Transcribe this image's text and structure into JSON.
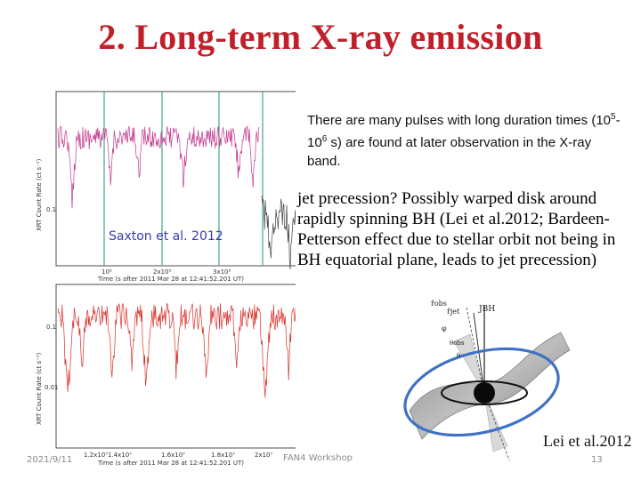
{
  "slide": {
    "title": "2. Long-term X-ray emission",
    "text1_a": "There are many pulses with long duration times (10",
    "text1_sup1": "5",
    "text1_b": "-10",
    "text1_sup2": "6",
    "text1_c": " s) are found at later observation in the X-ray band.",
    "text2": "jet precession?  Possibly warped disk around rapidly spinning BH (Lei et al.2012; Bardeen-Petterson effect due to stellar orbit not being in BH equatorial plane, leads to jet precession)",
    "credit_top": "Saxton et al. 2012",
    "credit_bottom": "Lei et al.2012",
    "footer_date": "2021/9/11",
    "footer_conference": "FAN4 Workshop",
    "page_number": "13"
  },
  "top_plot": {
    "ylabel": "XRT Count Rate (ct s⁻¹)",
    "ytick": "0.1",
    "xticks": [
      "10⁵",
      "2x10⁵",
      "3x10⁵"
    ],
    "xlabel": "Time (s after 2011 Mar 28 at 12:41:52.201 UT)"
  },
  "bottom_plot": {
    "ylabel": "XRT Count Rate (ct s⁻¹)",
    "yticks": [
      "0.1",
      "0.01"
    ],
    "xticks": [
      "1.2x10⁷",
      "1.4x10⁷",
      "1.6x10⁷",
      "1.8x10⁷",
      "2x10⁷"
    ],
    "xlabel": "Time (s after 2011 Mar 28 at 12:41:52.201 UT)"
  },
  "diagram": {
    "label_obs": "r̂obs",
    "label_jet": "r̂jet",
    "label_jbh": "JBH",
    "label_phi": "φ",
    "label_theta_obs": "θobs",
    "label_theta": "θ"
  },
  "colors": {
    "title": "#c0202a",
    "top_curve": "#c3388f",
    "bottom_curve": "#d8322a",
    "marker_lines": "#3fa78f",
    "orbit": "#3f72c4"
  }
}
